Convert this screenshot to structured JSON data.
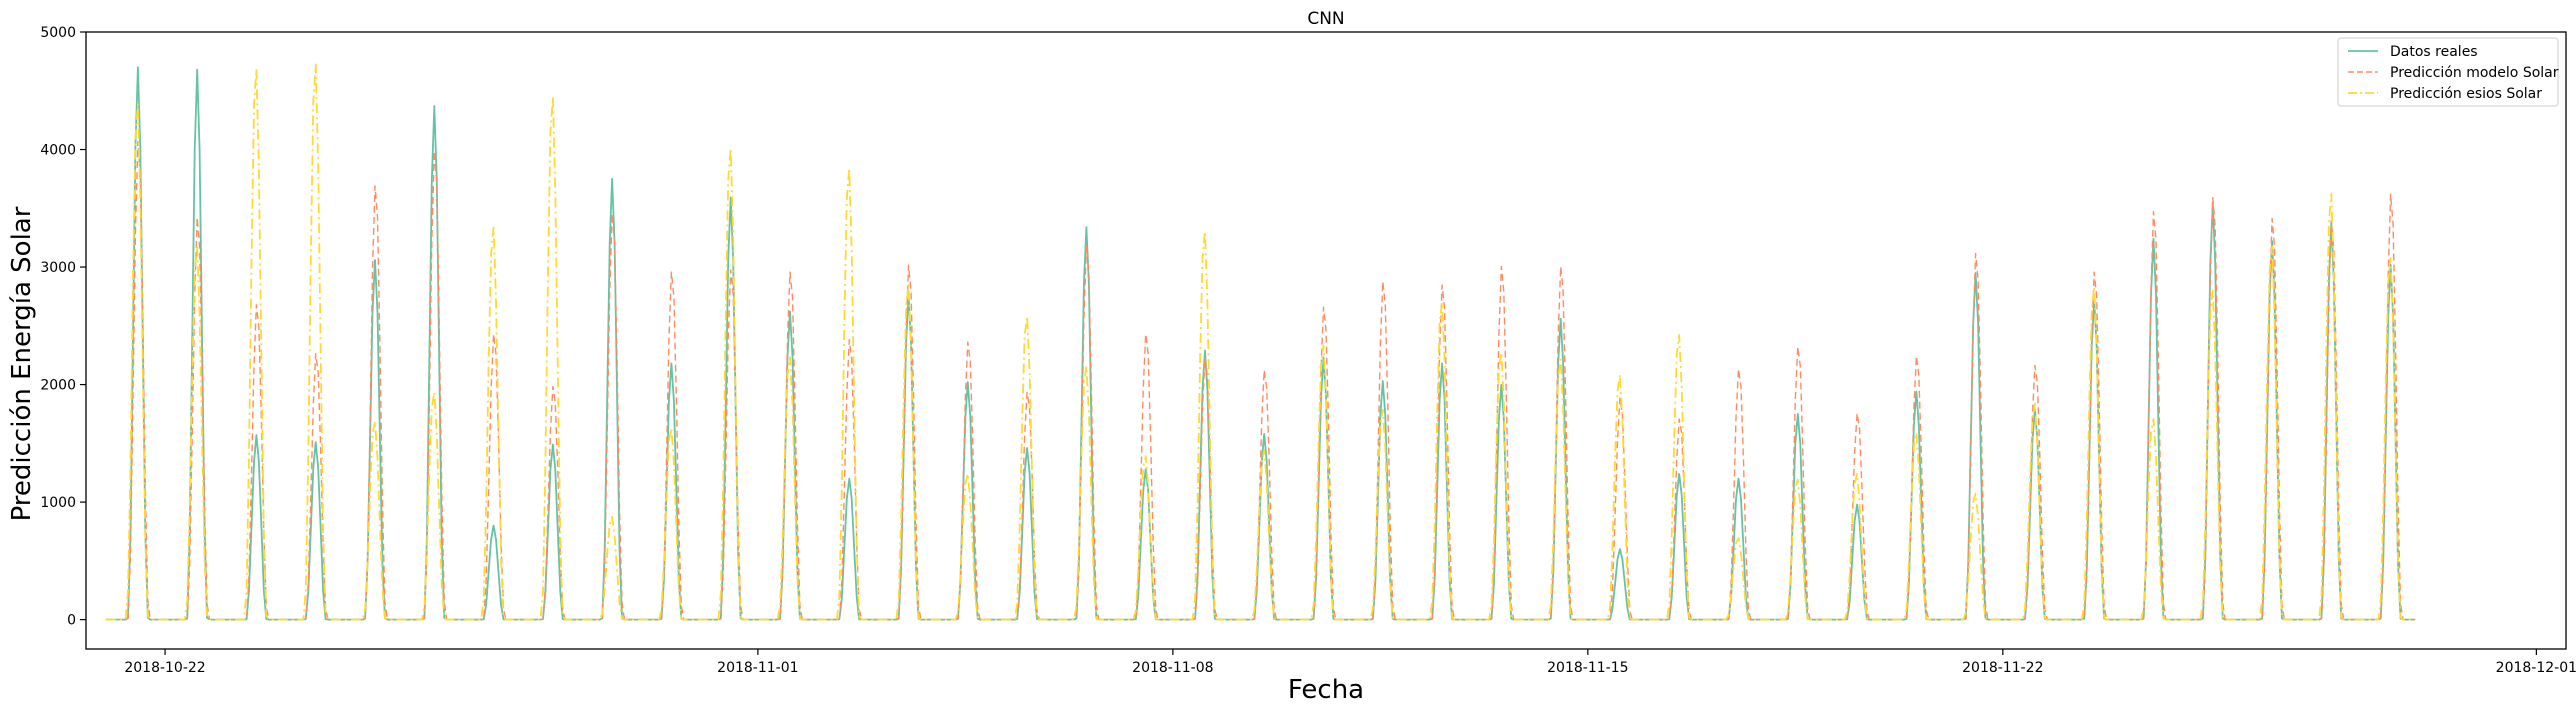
{
  "chart_data": {
    "type": "line",
    "title": "CNN",
    "xlabel": "Fecha",
    "ylabel": "Predicción Energía Solar",
    "x_range": [
      "2018-10-20T16:00",
      "2018-12-01T12:00"
    ],
    "x_ticks": [
      "2018-10-22",
      "2018-11-01",
      "2018-11-08",
      "2018-11-15",
      "2018-11-22",
      "2018-12-01"
    ],
    "ylim": [
      -250,
      5000
    ],
    "y_ticks": [
      0,
      1000,
      2000,
      3000,
      4000,
      5000
    ],
    "grid": false,
    "legend_position": "top-right",
    "series": [
      {
        "name": "Datos reales",
        "color": "#66c2a5",
        "style": "solid",
        "peaks": [
          4700,
          4680,
          1570,
          1510,
          3060,
          4370,
          800,
          1490,
          3750,
          2180,
          3590,
          2620,
          1200,
          2760,
          2020,
          1460,
          3340,
          1280,
          2290,
          1580,
          2230,
          2030,
          2180,
          2000,
          2560,
          600,
          1240,
          1200,
          1750,
          980,
          1940,
          2950,
          1790,
          2720,
          3240,
          3550,
          3220,
          3380,
          3020
        ]
      },
      {
        "name": "Predicción modelo Solar",
        "color": "#fc8d62",
        "style": "dashed",
        "peaks": [
          4100,
          3450,
          2700,
          2280,
          3720,
          4020,
          2450,
          2000,
          3480,
          2980,
          3000,
          2980,
          2400,
          3040,
          2380,
          1950,
          3200,
          2450,
          2250,
          2140,
          2680,
          2900,
          2870,
          3030,
          3030,
          1900,
          1720,
          2150,
          2340,
          1770,
          2260,
          3140,
          2180,
          2980,
          3500,
          3620,
          3440,
          3420,
          3650
        ]
      },
      {
        "name": "Predicción esios Solar",
        "color": "#ffd92f",
        "style": "dashdot",
        "peaks": [
          4420,
          3200,
          4720,
          4760,
          1700,
          1950,
          3360,
          4480,
          880,
          1640,
          4040,
          2250,
          3870,
          2870,
          1250,
          2600,
          2170,
          1400,
          3330,
          1450,
          2350,
          1800,
          2720,
          2290,
          2230,
          2100,
          2440,
          700,
          1200,
          1250,
          1600,
          1080,
          1850,
          2850,
          1720,
          2820,
          3200,
          3650,
          3100
        ]
      }
    ]
  }
}
